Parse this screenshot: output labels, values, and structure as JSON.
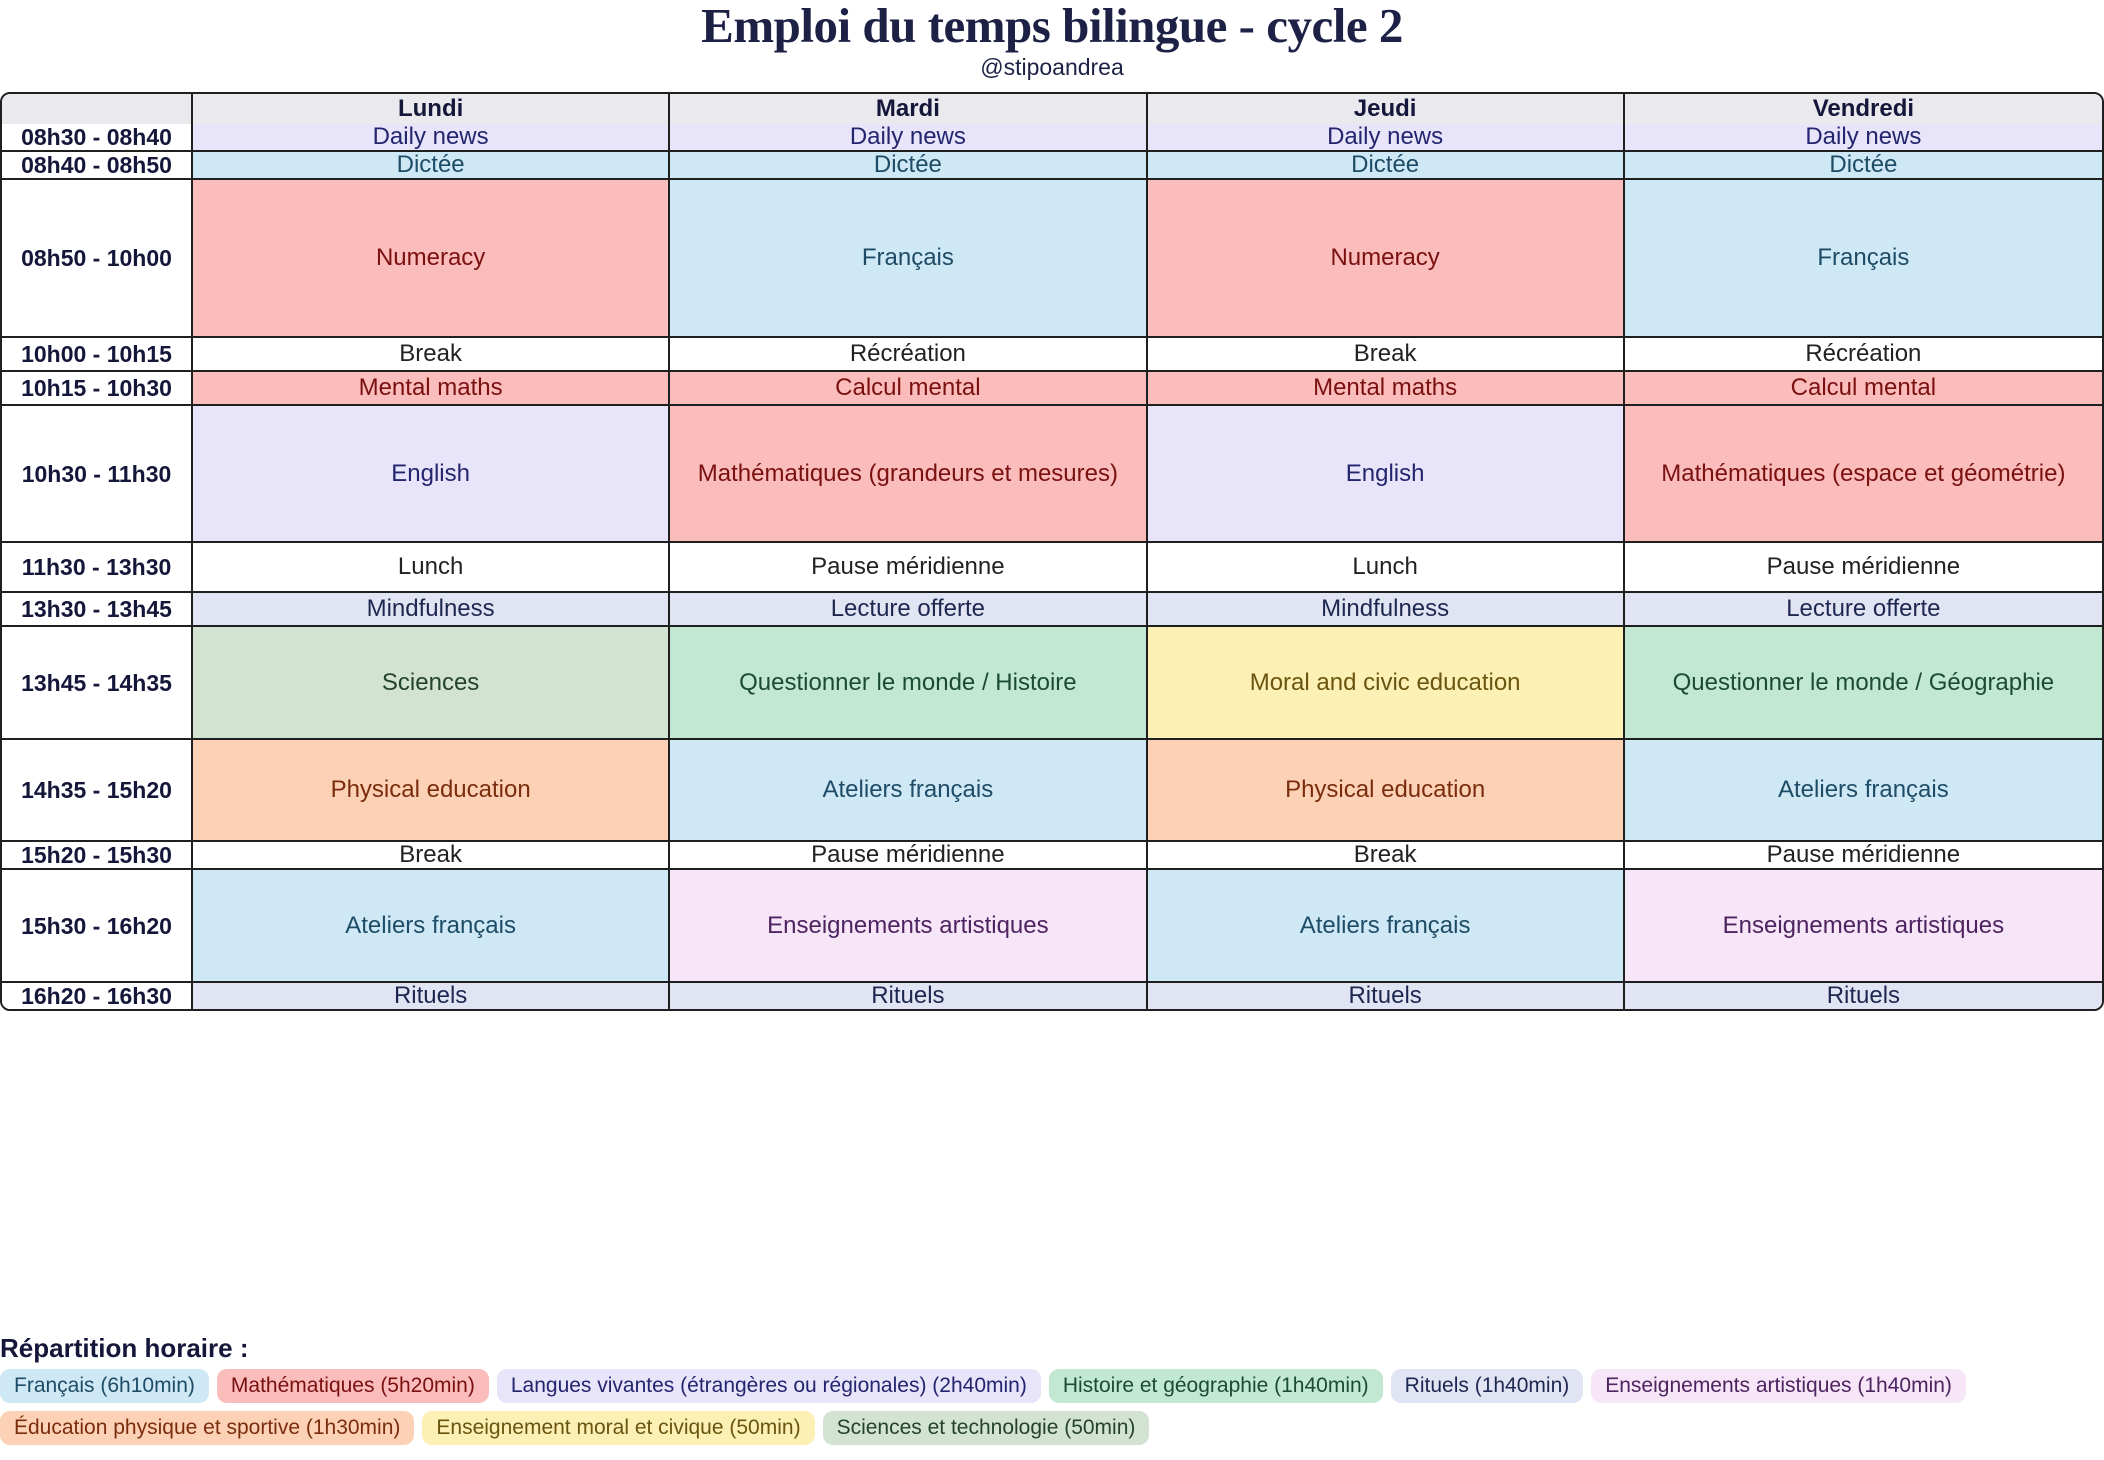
{
  "title": "Emploi du temps bilingue - cycle 2",
  "subtitle": "@stipoandrea",
  "days": [
    "Lundi",
    "Mardi",
    "Jeudi",
    "Vendredi"
  ],
  "colors": {
    "francais": {
      "bg": "#cfe8f5",
      "fg": "#1e4c66"
    },
    "math": {
      "bg": "#fbbcbc",
      "fg": "#7a1010"
    },
    "langues": {
      "bg": "#e8e4fa",
      "fg": "#23256e"
    },
    "histgeo": {
      "bg": "#c2e8d3",
      "fg": "#1c4a37"
    },
    "rituels": {
      "bg": "#e1e4f3",
      "fg": "#1e2750"
    },
    "arts": {
      "bg": "#f6e6f7",
      "fg": "#4d2360"
    },
    "eps": {
      "bg": "#fdd1b5",
      "fg": "#7a2d0d"
    },
    "moral": {
      "bg": "#fdf0b4",
      "fg": "#6a5510"
    },
    "sciences": {
      "bg": "#d3e3d2",
      "fg": "#23432e"
    },
    "pause": {
      "bg": "#ffffff",
      "fg": "#222222"
    }
  },
  "rows": [
    {
      "time": "08h30 - 08h40",
      "cells": [
        {
          "label": "Daily news",
          "cat": "langues"
        },
        {
          "label": "Daily news",
          "cat": "langues"
        },
        {
          "label": "Daily news",
          "cat": "langues"
        },
        {
          "label": "Daily news",
          "cat": "langues"
        }
      ]
    },
    {
      "time": "08h40 - 08h50",
      "cells": [
        {
          "label": "Dictée",
          "cat": "francais"
        },
        {
          "label": "Dictée",
          "cat": "francais"
        },
        {
          "label": "Dictée",
          "cat": "francais"
        },
        {
          "label": "Dictée",
          "cat": "francais"
        }
      ]
    },
    {
      "time": "08h50 - 10h00",
      "cells": [
        {
          "label": "Numeracy",
          "cat": "math"
        },
        {
          "label": "Français",
          "cat": "francais"
        },
        {
          "label": "Numeracy",
          "cat": "math"
        },
        {
          "label": "Français",
          "cat": "francais"
        }
      ]
    },
    {
      "time": "10h00 - 10h15",
      "cells": [
        {
          "label": "Break",
          "cat": "pause"
        },
        {
          "label": "Récréation",
          "cat": "pause"
        },
        {
          "label": "Break",
          "cat": "pause"
        },
        {
          "label": "Récréation",
          "cat": "pause"
        }
      ]
    },
    {
      "time": "10h15 - 10h30",
      "cells": [
        {
          "label": "Mental maths",
          "cat": "math"
        },
        {
          "label": "Calcul mental",
          "cat": "math"
        },
        {
          "label": "Mental maths",
          "cat": "math"
        },
        {
          "label": "Calcul mental",
          "cat": "math"
        }
      ]
    },
    {
      "time": "10h30 - 11h30",
      "cells": [
        {
          "label": "English",
          "cat": "langues"
        },
        {
          "label": "Mathématiques (grandeurs et mesures)",
          "cat": "math"
        },
        {
          "label": "English",
          "cat": "langues"
        },
        {
          "label": "Mathématiques (espace et géométrie)",
          "cat": "math"
        }
      ]
    },
    {
      "time": "11h30 - 13h30",
      "cells": [
        {
          "label": "Lunch",
          "cat": "pause"
        },
        {
          "label": "Pause méridienne",
          "cat": "pause"
        },
        {
          "label": "Lunch",
          "cat": "pause"
        },
        {
          "label": "Pause méridienne",
          "cat": "pause"
        }
      ]
    },
    {
      "time": "13h30 - 13h45",
      "cells": [
        {
          "label": "Mindfulness",
          "cat": "rituels"
        },
        {
          "label": "Lecture offerte",
          "cat": "rituels"
        },
        {
          "label": "Mindfulness",
          "cat": "rituels"
        },
        {
          "label": "Lecture offerte",
          "cat": "rituels"
        }
      ]
    },
    {
      "time": "13h45 - 14h35",
      "cells": [
        {
          "label": "Sciences",
          "cat": "sciences"
        },
        {
          "label": "Questionner le monde / Histoire",
          "cat": "histgeo"
        },
        {
          "label": "Moral and civic education",
          "cat": "moral"
        },
        {
          "label": "Questionner le monde / Géographie",
          "cat": "histgeo"
        }
      ]
    },
    {
      "time": "14h35 - 15h20",
      "cells": [
        {
          "label": "Physical education",
          "cat": "eps"
        },
        {
          "label": "Ateliers français",
          "cat": "francais"
        },
        {
          "label": "Physical education",
          "cat": "eps"
        },
        {
          "label": "Ateliers français",
          "cat": "francais"
        }
      ]
    },
    {
      "time": "15h20 - 15h30",
      "cells": [
        {
          "label": "Break",
          "cat": "pause"
        },
        {
          "label": "Pause méridienne",
          "cat": "pause"
        },
        {
          "label": "Break",
          "cat": "pause"
        },
        {
          "label": "Pause méridienne",
          "cat": "pause"
        }
      ]
    },
    {
      "time": "15h30 - 16h20",
      "cells": [
        {
          "label": "Ateliers français",
          "cat": "francais"
        },
        {
          "label": "Enseignements artistiques",
          "cat": "arts"
        },
        {
          "label": "Ateliers français",
          "cat": "francais"
        },
        {
          "label": "Enseignements artistiques",
          "cat": "arts"
        }
      ]
    },
    {
      "time": "16h20 - 16h30",
      "cells": [
        {
          "label": "Rituels",
          "cat": "rituels"
        },
        {
          "label": "Rituels",
          "cat": "rituels"
        },
        {
          "label": "Rituels",
          "cat": "rituels"
        },
        {
          "label": "Rituels",
          "cat": "rituels"
        }
      ]
    }
  ],
  "legend_title": "Répartition horaire :",
  "legend": [
    {
      "label": "Français (6h10min)",
      "cat": "francais"
    },
    {
      "label": "Mathématiques (5h20min)",
      "cat": "math"
    },
    {
      "label": "Langues vivantes (étrangères ou régionales) (2h40min)",
      "cat": "langues"
    },
    {
      "label": "Histoire et géographie (1h40min)",
      "cat": "histgeo"
    },
    {
      "label": "Rituels (1h40min)",
      "cat": "rituels"
    },
    {
      "label": "Enseignements artistiques (1h40min)",
      "cat": "arts"
    },
    {
      "label": "Éducation physique et sportive (1h30min)",
      "cat": "eps"
    },
    {
      "label": "Enseignement moral et civique (50min)",
      "cat": "moral"
    },
    {
      "label": "Sciences et technologie (50min)",
      "cat": "sciences"
    }
  ]
}
